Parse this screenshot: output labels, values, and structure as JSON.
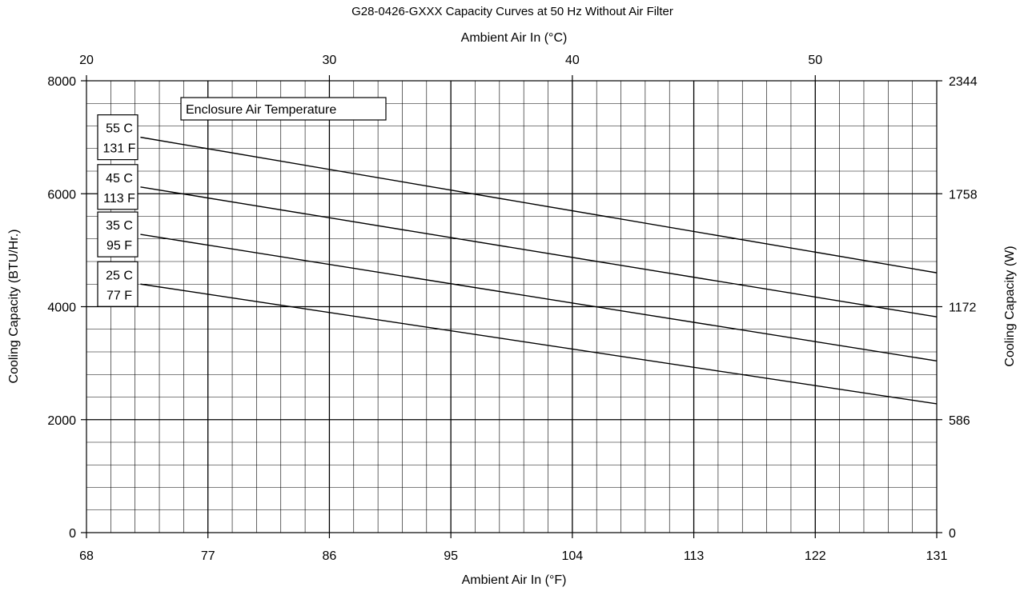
{
  "chart_data": {
    "type": "line",
    "title": "G28-0426-GXXX Capacity Curves at 50 Hz Without Air Filter",
    "x_top_label": "Ambient Air In (°C)",
    "x_label": "Ambient Air In (°F)",
    "y_label": "Cooling Capacity (BTU/Hr.)",
    "y2_label": "Cooling Capacity (W)",
    "xlim": [
      68,
      131
    ],
    "ylim": [
      0,
      8000
    ],
    "x_ticks": [
      68,
      77,
      86,
      95,
      104,
      113,
      122,
      131
    ],
    "x_top_ticks": [
      20,
      30,
      40,
      50
    ],
    "y_ticks": [
      0,
      2000,
      4000,
      6000,
      8000
    ],
    "y2_ticks": [
      0,
      586,
      1172,
      1758,
      2344
    ],
    "grid": true,
    "legend_title": "Enclosure Air Temperature",
    "series": [
      {
        "name_c": "55 C",
        "name_f": "131 F",
        "x": [
          72,
          131
        ],
        "y": [
          7000,
          4600
        ]
      },
      {
        "name_c": "45 C",
        "name_f": "113 F",
        "x": [
          72,
          131
        ],
        "y": [
          6120,
          3820
        ]
      },
      {
        "name_c": "35 C",
        "name_f": "95 F",
        "x": [
          72,
          131
        ],
        "y": [
          5280,
          3040
        ]
      },
      {
        "name_c": "25 C",
        "name_f": "77 F",
        "x": [
          72,
          131
        ],
        "y": [
          4400,
          2280
        ]
      }
    ]
  }
}
